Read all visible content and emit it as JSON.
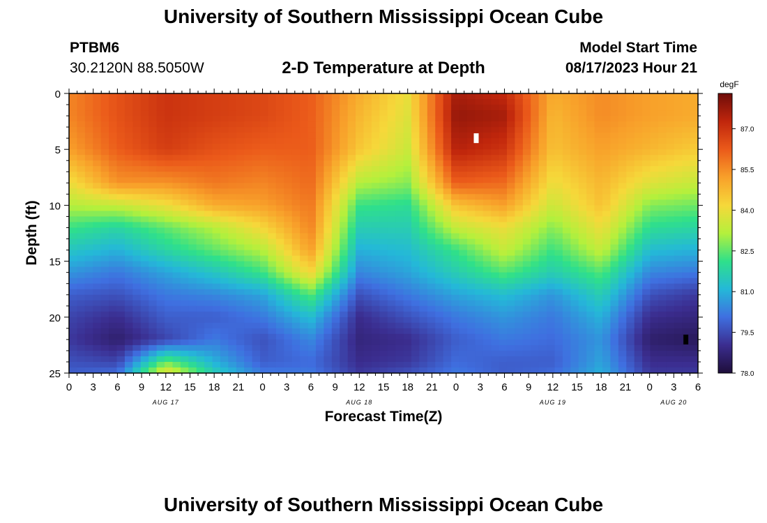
{
  "header": {
    "title": "University of Southern Mississippi Ocean Cube",
    "station_id": "PTBM6",
    "coordinates": "30.2120N  88.5050W",
    "plot_title": "2-D Temperature at Depth",
    "model_start_label": "Model Start Time",
    "model_start_value": "08/17/2023 Hour 21"
  },
  "footer": {
    "title": "University of Southern Mississippi Ocean Cube"
  },
  "chart_data": {
    "type": "heatmap",
    "title": "2-D Temperature at Depth",
    "xlabel": "Forecast Time(Z)",
    "ylabel": "Depth (ft)",
    "xlim": [
      0,
      78
    ],
    "ylim": [
      25,
      0
    ],
    "x_ticks": [
      0,
      3,
      6,
      9,
      12,
      15,
      18,
      21,
      24,
      27,
      30,
      33,
      36,
      39,
      42,
      45,
      48,
      51,
      54,
      57,
      60,
      63,
      66,
      69,
      72,
      75,
      78
    ],
    "x_tick_labels": [
      "0",
      "3",
      "6",
      "9",
      "12",
      "15",
      "18",
      "21",
      "0",
      "3",
      "6",
      "9",
      "12",
      "15",
      "18",
      "21",
      "0",
      "3",
      "6",
      "9",
      "12",
      "15",
      "18",
      "21",
      "0",
      "3",
      "6"
    ],
    "y_ticks": [
      0,
      5,
      10,
      15,
      20,
      25
    ],
    "y_tick_labels": [
      "0",
      "5",
      "10",
      "15",
      "20",
      "25"
    ],
    "date_labels": [
      {
        "x": 12,
        "text": "AUG 17"
      },
      {
        "x": 36,
        "text": "AUG 18"
      },
      {
        "x": 60,
        "text": "AUG 19"
      },
      {
        "x": 75,
        "text": "AUG 20"
      }
    ],
    "colorbar": {
      "unit": "degF",
      "min": 78.0,
      "max": 88.3,
      "ticks": [
        78.0,
        79.5,
        81.0,
        82.5,
        84.0,
        85.5,
        87.0
      ],
      "tick_labels": [
        "78.0",
        "79.5",
        "81.0",
        "82.5",
        "84.0",
        "85.5",
        "87.0"
      ],
      "colors": [
        "#1e0e3a",
        "#3b2d8f",
        "#3f6fe0",
        "#24b8d8",
        "#2fe08a",
        "#b4f03c",
        "#f6d83a",
        "#f8a02a",
        "#eb5a1a",
        "#c0260c",
        "#6e0c0a"
      ]
    },
    "field": {
      "x": [
        0,
        6,
        12,
        18,
        24,
        30,
        36,
        42,
        48,
        54,
        60,
        66,
        72,
        78
      ],
      "depths": [
        0,
        2,
        5,
        8,
        10,
        12,
        14,
        16,
        18,
        20,
        22,
        24,
        25
      ],
      "temperatures_degF": [
        [
          85.6,
          86.4,
          87.0,
          86.8,
          86.6,
          86.2,
          85.0,
          84.0,
          87.6,
          87.2,
          85.0,
          85.5,
          85.2,
          85.0
        ],
        [
          85.6,
          86.4,
          87.0,
          86.8,
          86.6,
          86.2,
          84.8,
          83.8,
          87.8,
          87.6,
          84.8,
          85.5,
          85.2,
          85.0
        ],
        [
          85.2,
          86.2,
          86.8,
          86.4,
          86.2,
          86.2,
          84.5,
          83.5,
          87.4,
          87.0,
          84.6,
          85.2,
          84.8,
          84.4
        ],
        [
          84.0,
          85.4,
          85.4,
          85.8,
          85.6,
          86.0,
          83.2,
          82.8,
          86.2,
          86.0,
          84.0,
          84.8,
          83.8,
          83.4
        ],
        [
          83.2,
          83.4,
          84.0,
          85.0,
          85.2,
          85.8,
          82.2,
          82.0,
          84.6,
          85.2,
          83.5,
          84.6,
          82.8,
          82.6
        ],
        [
          82.2,
          81.8,
          82.5,
          83.2,
          84.2,
          85.6,
          81.6,
          81.6,
          83.4,
          84.0,
          82.8,
          84.0,
          82.0,
          81.8
        ],
        [
          81.4,
          81.0,
          81.8,
          82.5,
          83.2,
          85.2,
          81.0,
          81.2,
          82.2,
          83.4,
          82.2,
          83.4,
          81.2,
          81.0
        ],
        [
          80.6,
          80.2,
          80.8,
          81.4,
          82.2,
          84.2,
          80.4,
          80.8,
          81.6,
          82.4,
          81.6,
          82.4,
          80.4,
          80.2
        ],
        [
          79.8,
          79.6,
          80.2,
          80.4,
          80.8,
          82.4,
          79.6,
          80.2,
          80.8,
          81.2,
          80.6,
          81.6,
          79.6,
          79.2
        ],
        [
          79.4,
          79.0,
          79.8,
          79.8,
          80.2,
          81.2,
          79.0,
          79.6,
          80.2,
          80.6,
          80.2,
          81.0,
          79.0,
          78.8
        ],
        [
          79.2,
          78.6,
          79.4,
          80.2,
          79.6,
          80.4,
          78.8,
          79.0,
          79.8,
          80.2,
          80.0,
          80.6,
          78.6,
          78.4
        ],
        [
          79.6,
          79.4,
          82.6,
          81.0,
          79.8,
          80.0,
          79.0,
          79.2,
          80.0,
          79.8,
          79.8,
          80.8,
          79.0,
          79.0
        ],
        [
          79.8,
          80.0,
          84.0,
          81.6,
          80.2,
          80.2,
          79.2,
          79.6,
          80.2,
          79.8,
          80.0,
          81.0,
          79.2,
          79.2
        ]
      ]
    },
    "markers": [
      {
        "x": 50.5,
        "depth": 4.0,
        "color": "white"
      },
      {
        "x": 76.5,
        "depth": 22.0,
        "color": "black"
      }
    ]
  }
}
